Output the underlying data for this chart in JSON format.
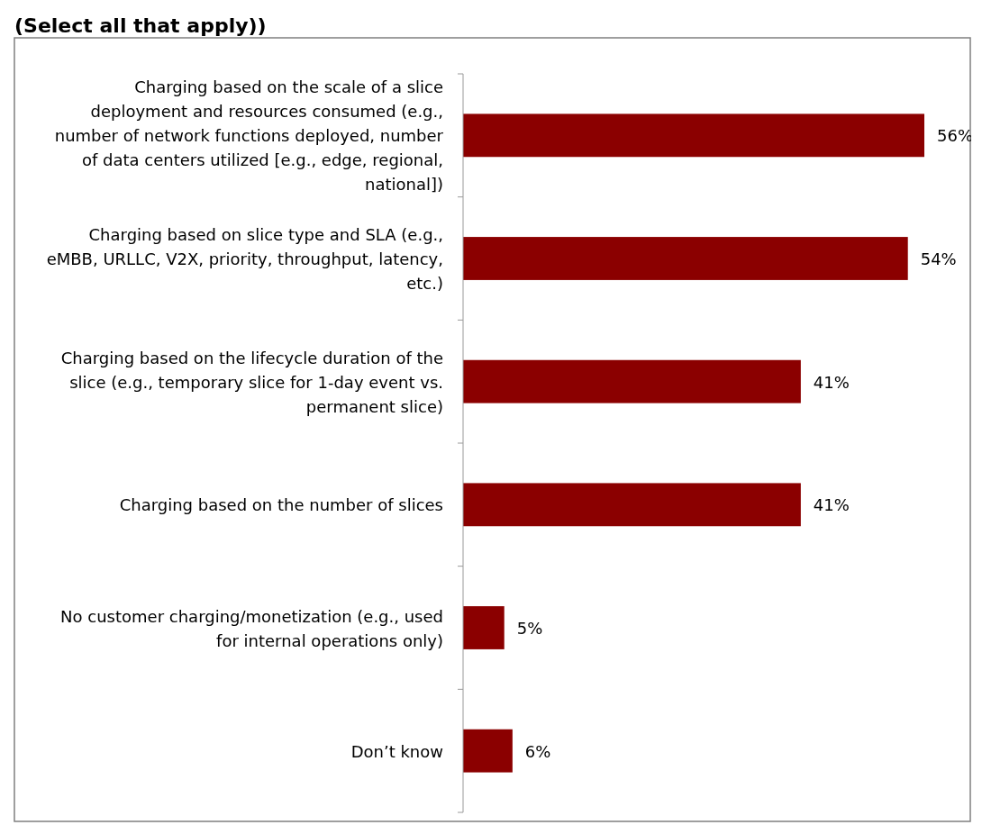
{
  "chart_data": {
    "type": "bar",
    "orientation": "horizontal",
    "title": "(Select all that apply))",
    "categories": [
      "Charging based on the scale of a slice deployment and resources consumed (e.g., number of network functions deployed, number of data centers utilized [e.g., edge, regional, national])",
      "Charging based on slice type and SLA (e.g., eMBB, URLLC, V2X, priority, throughput, latency, etc.)",
      "Charging based on the lifecycle duration of the slice (e.g., temporary slice for 1-day event vs. permanent slice)",
      "Charging based on the number of slices",
      "No customer charging/monetization (e.g., used for internal operations only)",
      "Don’t know"
    ],
    "values": [
      56,
      54,
      41,
      41,
      5,
      6
    ],
    "value_labels": [
      "56%",
      "54%",
      "41%",
      "41%",
      "5%",
      "6%"
    ],
    "color": "#8b0000"
  }
}
